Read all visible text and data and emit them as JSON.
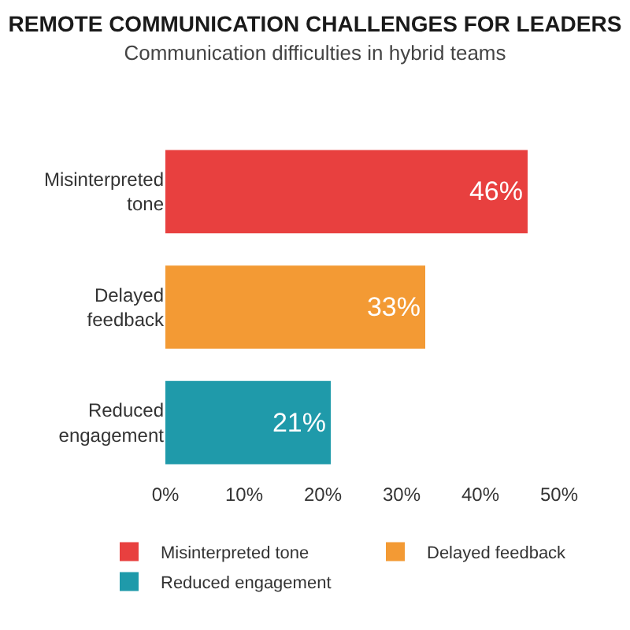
{
  "chart_data": {
    "type": "bar",
    "orientation": "horizontal",
    "title": "REMOTE COMMUNICATION CHALLENGES FOR LEADERS",
    "subtitle": "Communication difficulties in hybrid teams",
    "categories": [
      "Misinterpreted tone",
      "Delayed feedback",
      "Reduced engagement"
    ],
    "series": [
      {
        "name": "Misinterpreted tone",
        "color": "#e8403f",
        "values": [
          46,
          null,
          null
        ]
      },
      {
        "name": "Delayed feedback",
        "color": "#f39a34",
        "values": [
          null,
          33,
          null
        ]
      },
      {
        "name": "Reduced engagement",
        "color": "#1f9aaa",
        "values": [
          null,
          null,
          21
        ]
      }
    ],
    "value_labels": [
      "46%",
      "33%",
      "21%"
    ],
    "xlim": [
      0,
      50
    ],
    "xticks": [
      {
        "value": 0,
        "label": "0%"
      },
      {
        "value": 10,
        "label": "10%"
      },
      {
        "value": 20,
        "label": "20%"
      },
      {
        "value": 30,
        "label": "30%"
      },
      {
        "value": 40,
        "label": "40%"
      },
      {
        "value": 50,
        "label": "50%"
      }
    ],
    "legend": "bottom"
  }
}
